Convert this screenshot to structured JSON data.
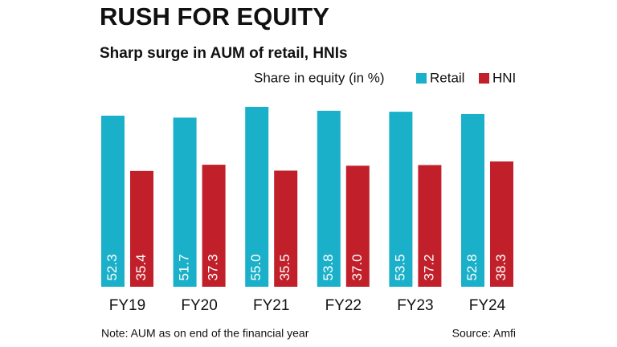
{
  "chart_data": {
    "type": "bar",
    "title": "RUSH FOR EQUITY",
    "subtitle": "Sharp surge in AUM of retail, HNIs",
    "legend_title": "Share in equity (in %)",
    "categories": [
      "FY19",
      "FY20",
      "FY21",
      "FY22",
      "FY23",
      "FY24"
    ],
    "series": [
      {
        "name": "Retail",
        "color": "#1bb0c9",
        "values": [
          52.3,
          51.7,
          55.0,
          53.8,
          53.5,
          52.8
        ],
        "value_labels": [
          "52.3",
          "51.7",
          "55.0",
          "53.8",
          "53.5",
          "52.8"
        ]
      },
      {
        "name": "HNI",
        "color": "#c1202a",
        "values": [
          35.4,
          37.3,
          35.5,
          37.0,
          37.2,
          38.3
        ],
        "value_labels": [
          "35.4",
          "37.3",
          "35.5",
          "37.0",
          "37.2",
          "38.3"
        ]
      }
    ],
    "ylim": [
      0,
      55
    ],
    "note": "Note: AUM as on end of the financial year",
    "source": "Source: Amfi"
  }
}
